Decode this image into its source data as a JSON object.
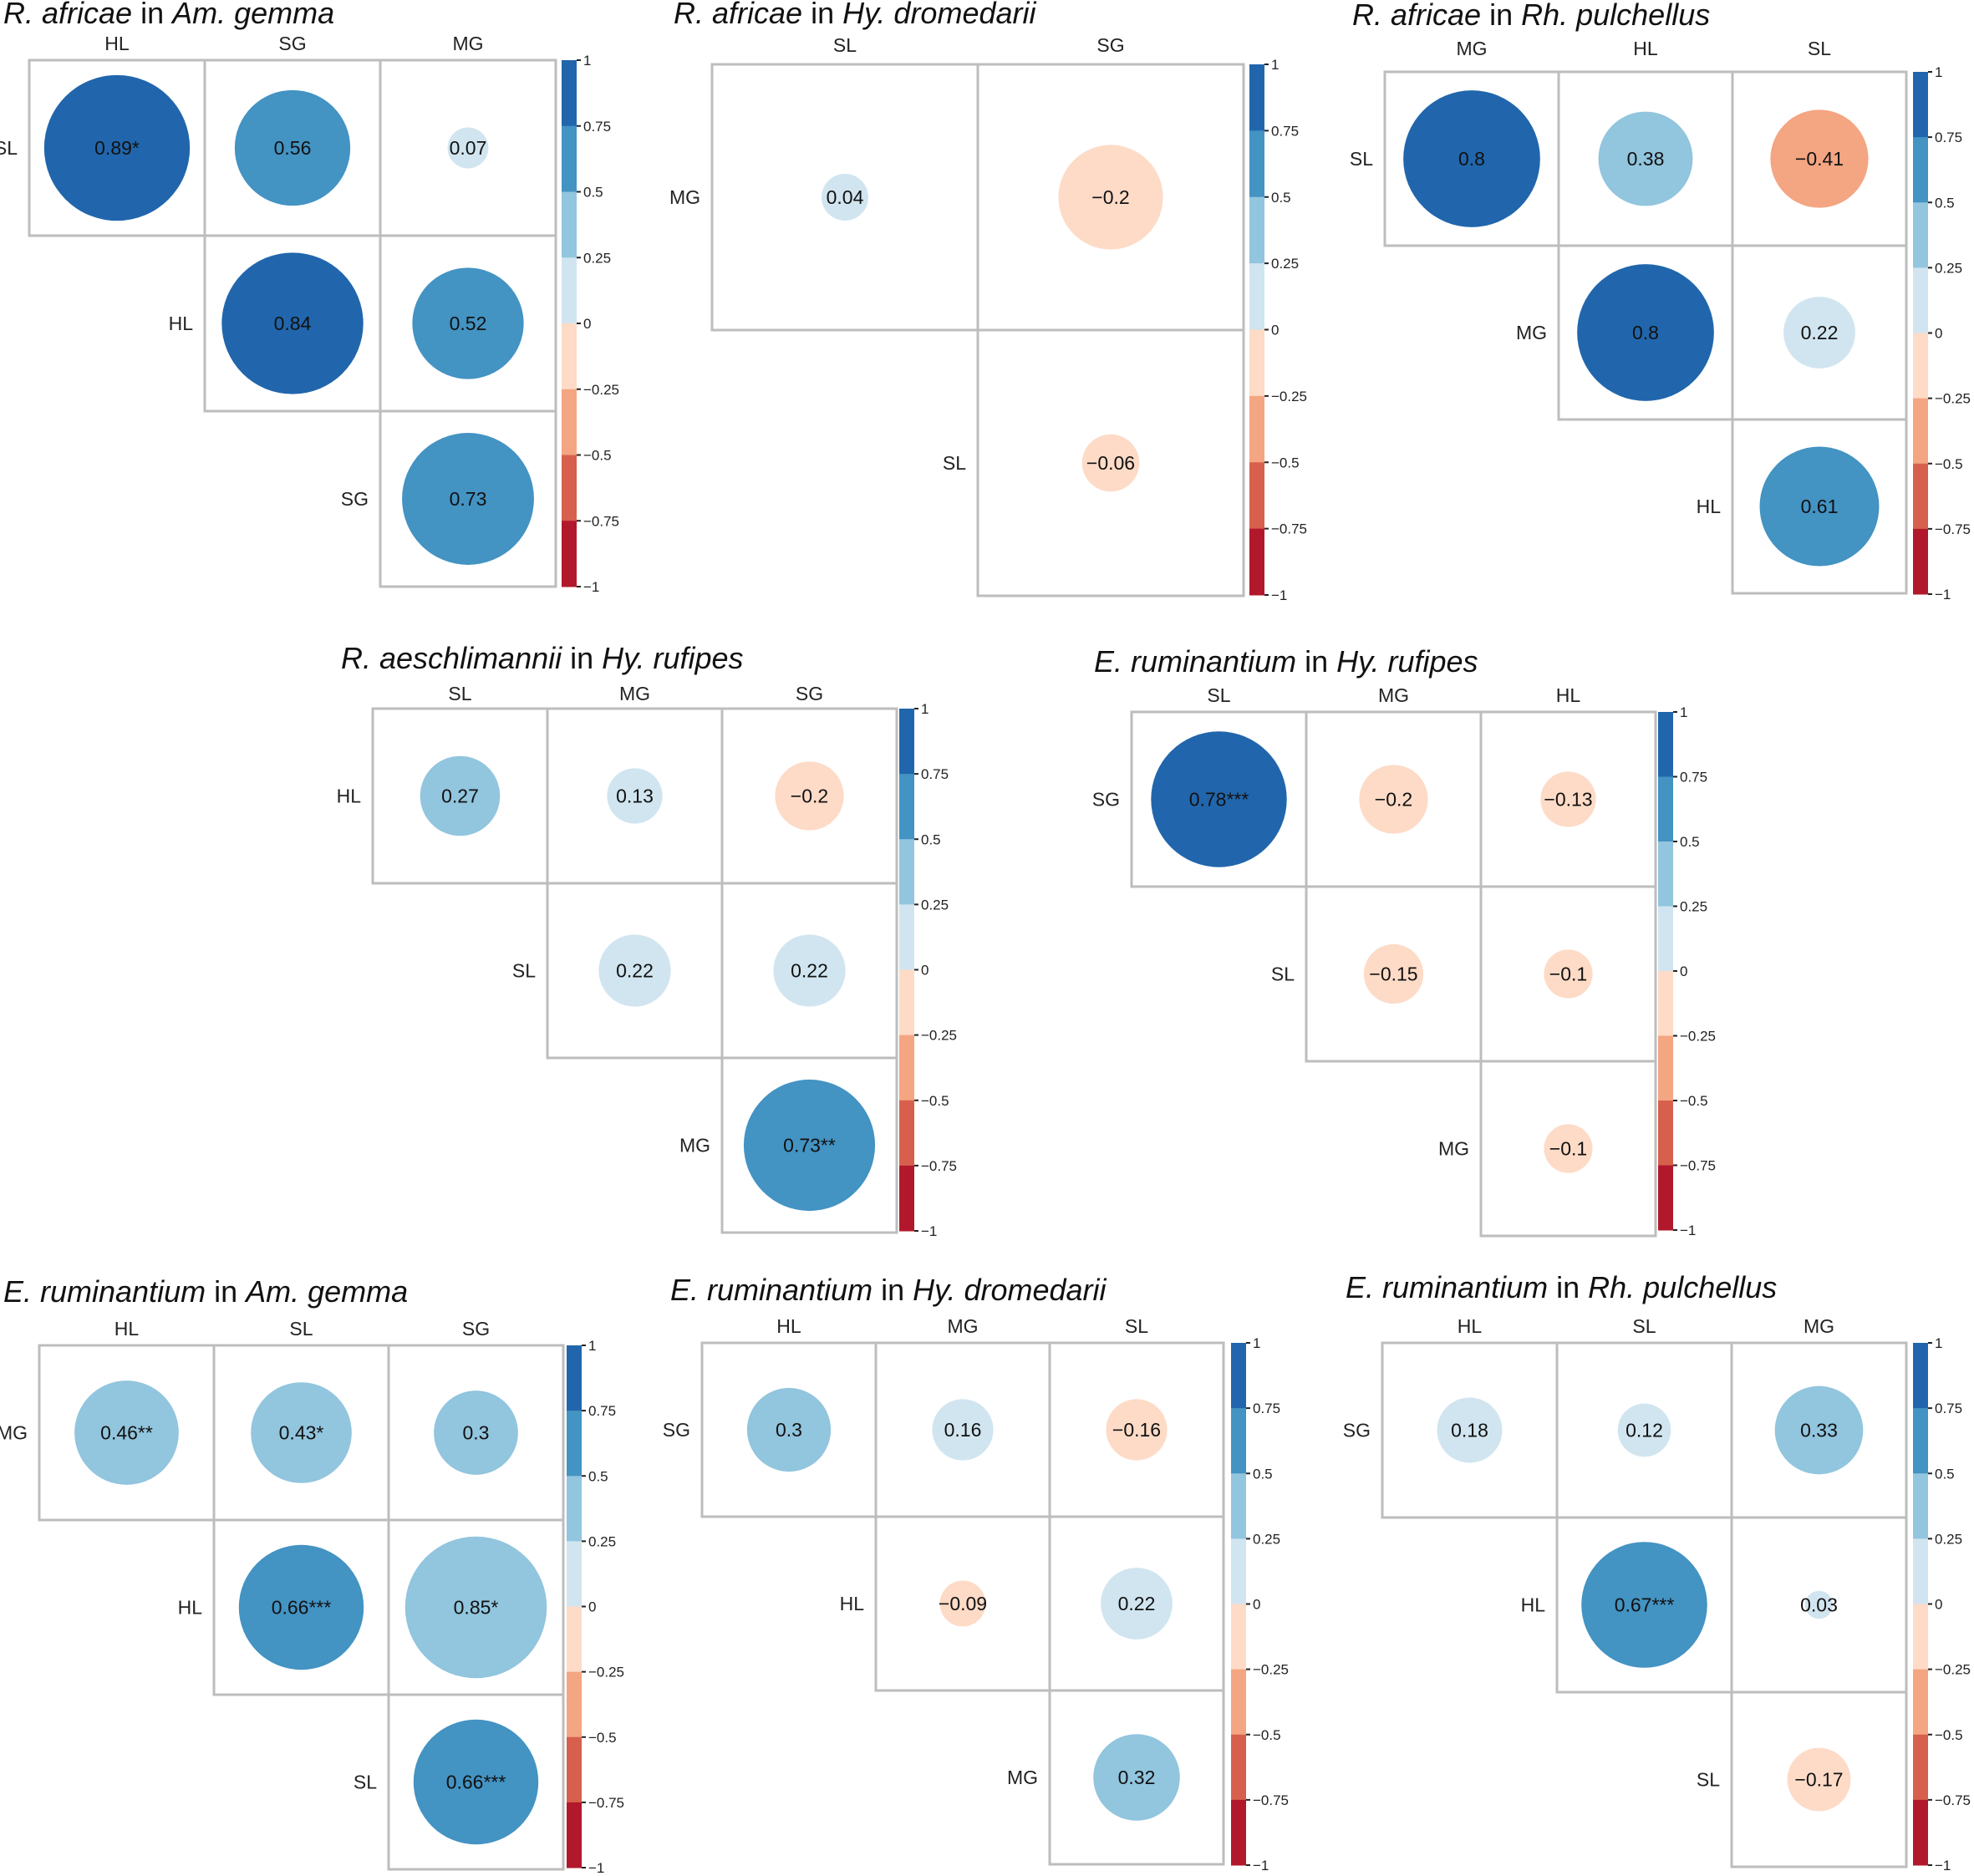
{
  "colors": {
    "scale": [
      "#b2182b",
      "#d6604d",
      "#f4a582",
      "#fddbc7",
      "#d1e5f0",
      "#92c5de",
      "#4393c3",
      "#2166ac"
    ],
    "grid": "#bdbdbd"
  },
  "colorbar_ticks": [
    "1",
    "0.75",
    "0.5",
    "0.25",
    "0",
    "−0.25",
    "−0.5",
    "−0.75",
    "−1"
  ],
  "chart_data": [
    {
      "type": "heatmap",
      "title": {
        "pathogen": "R. africae",
        "connector": " in ",
        "host": "Am. gemma"
      },
      "columns": [
        "HL",
        "SG",
        "MG"
      ],
      "rows": [
        "SL",
        "HL",
        "SG"
      ],
      "cells": [
        {
          "row": 0,
          "col": 0,
          "value": 0.89,
          "label": "0.89*"
        },
        {
          "row": 0,
          "col": 1,
          "value": 0.56,
          "label": "0.56"
        },
        {
          "row": 0,
          "col": 2,
          "value": 0.07,
          "label": "0.07"
        },
        {
          "row": 1,
          "col": 1,
          "value": 0.84,
          "label": "0.84"
        },
        {
          "row": 1,
          "col": 2,
          "value": 0.52,
          "label": "0.52"
        },
        {
          "row": 2,
          "col": 2,
          "value": 0.73,
          "label": "0.73"
        }
      ],
      "color_range": [
        -1,
        1
      ]
    },
    {
      "type": "heatmap",
      "title": {
        "pathogen": "R. africae",
        "connector": " in ",
        "host": "Hy. dromedarii"
      },
      "columns": [
        "SL",
        "SG"
      ],
      "rows": [
        "MG",
        "SL"
      ],
      "cells": [
        {
          "row": 0,
          "col": 0,
          "value": 0.04,
          "label": "0.04"
        },
        {
          "row": 0,
          "col": 1,
          "value": -0.2,
          "label": "−0.2"
        },
        {
          "row": 1,
          "col": 1,
          "value": -0.06,
          "label": "−0.06"
        }
      ],
      "color_range": [
        -1,
        1
      ]
    },
    {
      "type": "heatmap",
      "title": {
        "pathogen": "R. africae",
        "connector": " in ",
        "host": "Rh. pulchellus"
      },
      "columns": [
        "MG",
        "HL",
        "SL"
      ],
      "rows": [
        "SL",
        "MG",
        "HL"
      ],
      "cells": [
        {
          "row": 0,
          "col": 0,
          "value": 0.8,
          "label": "0.8"
        },
        {
          "row": 0,
          "col": 1,
          "value": 0.38,
          "label": "0.38"
        },
        {
          "row": 0,
          "col": 2,
          "value": -0.41,
          "label": "−0.41"
        },
        {
          "row": 1,
          "col": 1,
          "value": 0.8,
          "label": "0.8"
        },
        {
          "row": 1,
          "col": 2,
          "value": 0.22,
          "label": "0.22"
        },
        {
          "row": 2,
          "col": 2,
          "value": 0.61,
          "label": "0.61"
        }
      ],
      "color_range": [
        -1,
        1
      ]
    },
    {
      "type": "heatmap",
      "title": {
        "pathogen": "R. aeschlimannii",
        "connector": " in ",
        "host": "Hy. rufipes"
      },
      "columns": [
        "SL",
        "MG",
        "SG"
      ],
      "rows": [
        "HL",
        "SL",
        "MG"
      ],
      "cells": [
        {
          "row": 0,
          "col": 0,
          "value": 0.27,
          "label": "0.27"
        },
        {
          "row": 0,
          "col": 1,
          "value": 0.13,
          "label": "0.13"
        },
        {
          "row": 0,
          "col": 2,
          "value": -0.2,
          "label": "−0.2"
        },
        {
          "row": 1,
          "col": 1,
          "value": 0.22,
          "label": "0.22"
        },
        {
          "row": 1,
          "col": 2,
          "value": 0.22,
          "label": "0.22"
        },
        {
          "row": 2,
          "col": 2,
          "value": 0.73,
          "label": "0.73**"
        }
      ],
      "color_range": [
        -1,
        1
      ]
    },
    {
      "type": "heatmap",
      "title": {
        "pathogen": "E. ruminantium",
        "connector": " in ",
        "host": "Hy. rufipes"
      },
      "columns": [
        "SL",
        "MG",
        "HL"
      ],
      "rows": [
        "SG",
        "SL",
        "MG"
      ],
      "cells": [
        {
          "row": 0,
          "col": 0,
          "value": 0.78,
          "label": "0.78***"
        },
        {
          "row": 0,
          "col": 1,
          "value": -0.2,
          "label": "−0.2"
        },
        {
          "row": 0,
          "col": 2,
          "value": -0.13,
          "label": "−0.13"
        },
        {
          "row": 1,
          "col": 1,
          "value": -0.15,
          "label": "−0.15"
        },
        {
          "row": 1,
          "col": 2,
          "value": -0.1,
          "label": "−0.1"
        },
        {
          "row": 2,
          "col": 2,
          "value": -0.1,
          "label": "−0.1"
        }
      ],
      "color_range": [
        -1,
        1
      ]
    },
    {
      "type": "heatmap",
      "title": {
        "pathogen": "E. ruminantium",
        "connector": " in ",
        "host": "Am. gemma"
      },
      "columns": [
        "HL",
        "SL",
        "SG"
      ],
      "rows": [
        "MG",
        "HL",
        "SL"
      ],
      "cells": [
        {
          "row": 0,
          "col": 0,
          "value": 0.46,
          "label": "0.46**"
        },
        {
          "row": 0,
          "col": 1,
          "value": 0.43,
          "label": "0.43*"
        },
        {
          "row": 0,
          "col": 2,
          "value": 0.3,
          "label": "0.3"
        },
        {
          "row": 1,
          "col": 1,
          "value": 0.66,
          "label": "0.66***"
        },
        {
          "row": 1,
          "col": 2,
          "value": 0.85,
          "label": "0.85*",
          "shade": 0.4
        },
        {
          "row": 2,
          "col": 2,
          "value": 0.66,
          "label": "0.66***"
        }
      ],
      "color_range": [
        -1,
        1
      ]
    },
    {
      "type": "heatmap",
      "title": {
        "pathogen": "E. ruminantium",
        "connector": " in ",
        "host": "Hy. dromedarii"
      },
      "columns": [
        "HL",
        "MG",
        "SL"
      ],
      "rows": [
        "SG",
        "HL",
        "MG"
      ],
      "cells": [
        {
          "row": 0,
          "col": 0,
          "value": 0.3,
          "label": "0.3"
        },
        {
          "row": 0,
          "col": 1,
          "value": 0.16,
          "label": "0.16"
        },
        {
          "row": 0,
          "col": 2,
          "value": -0.16,
          "label": "−0.16"
        },
        {
          "row": 1,
          "col": 1,
          "value": -0.09,
          "label": "−0.09",
          "small": true
        },
        {
          "row": 1,
          "col": 2,
          "value": 0.22,
          "label": "0.22"
        },
        {
          "row": 2,
          "col": 2,
          "value": 0.32,
          "label": "0.32"
        }
      ],
      "color_range": [
        -1,
        1
      ]
    },
    {
      "type": "heatmap",
      "title": {
        "pathogen": "E. ruminantium",
        "connector": " in ",
        "host": "Rh. pulchellus"
      },
      "columns": [
        "HL",
        "SL",
        "MG"
      ],
      "rows": [
        "SG",
        "HL",
        "SL"
      ],
      "cells": [
        {
          "row": 0,
          "col": 0,
          "value": 0.18,
          "label": "0.18"
        },
        {
          "row": 0,
          "col": 1,
          "value": 0.12,
          "label": "0.12"
        },
        {
          "row": 0,
          "col": 2,
          "value": 0.33,
          "label": "0.33"
        },
        {
          "row": 1,
          "col": 1,
          "value": 0.67,
          "label": "0.67***"
        },
        {
          "row": 1,
          "col": 2,
          "value": 0.03,
          "label": "0.03"
        },
        {
          "row": 2,
          "col": 2,
          "value": -0.17,
          "label": "−0.17"
        }
      ],
      "color_range": [
        -1,
        1
      ]
    }
  ]
}
